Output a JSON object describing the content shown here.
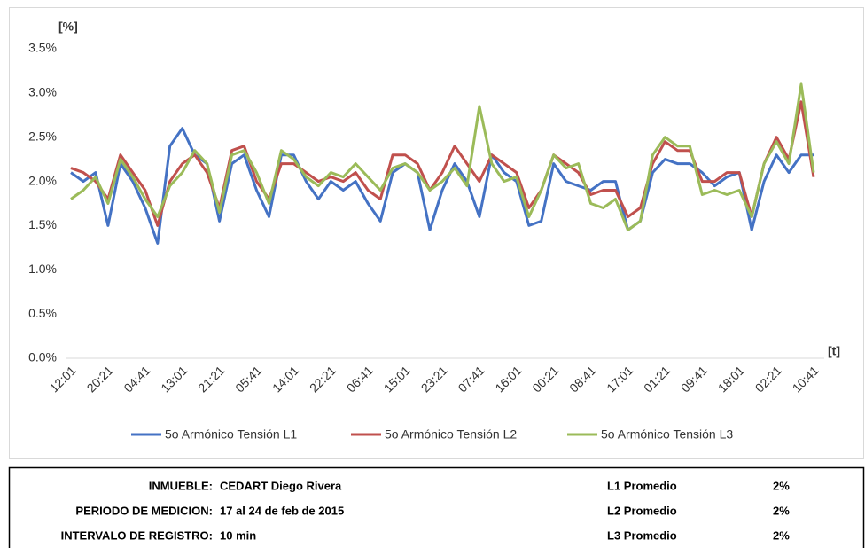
{
  "chart_data": {
    "type": "line",
    "y_unit_label": "[%]",
    "x_unit_label": "[t]",
    "categories": [
      "12:01",
      null,
      null,
      "20:21",
      null,
      null,
      "04:41",
      null,
      null,
      "13:01",
      null,
      null,
      "21:21",
      null,
      null,
      "05:41",
      null,
      null,
      "14:01",
      null,
      null,
      "22:21",
      null,
      null,
      "06:41",
      null,
      null,
      "15:01",
      null,
      null,
      "23:21",
      null,
      null,
      "07:41",
      null,
      null,
      "16:01",
      null,
      null,
      "00:21",
      null,
      null,
      "08:41",
      null,
      null,
      "17:01",
      null,
      null,
      "01:21",
      null,
      null,
      "09:41",
      null,
      null,
      "18:01",
      null,
      null,
      "02:21",
      null,
      null,
      "10:41"
    ],
    "series": [
      {
        "name": "5o Armónico Tensión L1",
        "color": "#4472c4",
        "values": [
          2.1,
          2.0,
          2.1,
          1.5,
          2.2,
          2.0,
          1.7,
          1.3,
          2.4,
          2.6,
          2.3,
          2.2,
          1.55,
          2.2,
          2.3,
          1.9,
          1.6,
          2.3,
          2.3,
          2.0,
          1.8,
          2.0,
          1.9,
          2.0,
          1.75,
          1.55,
          2.1,
          2.2,
          2.1,
          1.45,
          1.9,
          2.2,
          2.0,
          1.6,
          2.3,
          2.1,
          2.0,
          1.5,
          1.55,
          2.2,
          2.0,
          1.95,
          1.9,
          2.0,
          2.0,
          1.45,
          1.55,
          2.1,
          2.25,
          2.2,
          2.2,
          2.1,
          1.95,
          2.05,
          2.1,
          1.45,
          2.0,
          2.3,
          2.1,
          2.3,
          2.3
        ]
      },
      {
        "name": "5o Armónico Tensión L2",
        "color": "#c0504d",
        "values": [
          2.15,
          2.1,
          2.0,
          1.8,
          2.3,
          2.1,
          1.9,
          1.5,
          2.0,
          2.2,
          2.3,
          2.1,
          1.7,
          2.35,
          2.4,
          2.0,
          1.8,
          2.2,
          2.2,
          2.1,
          2.0,
          2.05,
          2.0,
          2.1,
          1.9,
          1.8,
          2.3,
          2.3,
          2.2,
          1.9,
          2.1,
          2.4,
          2.2,
          2.0,
          2.3,
          2.2,
          2.1,
          1.7,
          1.9,
          2.3,
          2.2,
          2.1,
          1.85,
          1.9,
          1.9,
          1.6,
          1.7,
          2.2,
          2.45,
          2.35,
          2.35,
          2.0,
          2.0,
          2.1,
          2.1,
          1.6,
          2.2,
          2.5,
          2.25,
          2.9,
          2.05
        ]
      },
      {
        "name": "5o Armónico Tensión L3",
        "color": "#9bbb59",
        "values": [
          1.8,
          1.9,
          2.05,
          1.75,
          2.25,
          2.05,
          1.8,
          1.6,
          1.95,
          2.1,
          2.35,
          2.2,
          1.65,
          2.3,
          2.35,
          2.1,
          1.75,
          2.35,
          2.25,
          2.05,
          1.95,
          2.1,
          2.05,
          2.2,
          2.05,
          1.9,
          2.15,
          2.2,
          2.1,
          1.9,
          2.0,
          2.15,
          1.95,
          2.85,
          2.2,
          2.0,
          2.05,
          1.6,
          1.9,
          2.3,
          2.15,
          2.2,
          1.75,
          1.7,
          1.8,
          1.45,
          1.55,
          2.3,
          2.5,
          2.4,
          2.4,
          1.85,
          1.9,
          1.85,
          1.9,
          1.6,
          2.2,
          2.45,
          2.2,
          3.1,
          2.1
        ]
      }
    ],
    "ylim": [
      0,
      3.5
    ],
    "yticks": [
      {
        "value": 0,
        "label": "0.0%"
      },
      {
        "value": 0.5,
        "label": "0.5%"
      },
      {
        "value": 1,
        "label": "1.0%"
      },
      {
        "value": 1.5,
        "label": "1.5%"
      },
      {
        "value": 2,
        "label": "2.0%"
      },
      {
        "value": 2.5,
        "label": "2.5%"
      },
      {
        "value": 3,
        "label": "3.0%"
      },
      {
        "value": 3.5,
        "label": "3.5%"
      }
    ],
    "grid": false,
    "legend": "bottom"
  },
  "table": {
    "rows": [
      [
        "INMUEBLE:",
        "CEDART Diego Rivera",
        "L1 Promedio",
        "2%"
      ],
      [
        "PERIODO DE MEDICION:",
        "17 al 24 de feb de 2015",
        "L2 Promedio",
        "2%"
      ],
      [
        "INTERVALO DE REGISTRO:",
        "10 min",
        "L3 Promedio",
        "2%"
      ]
    ]
  }
}
